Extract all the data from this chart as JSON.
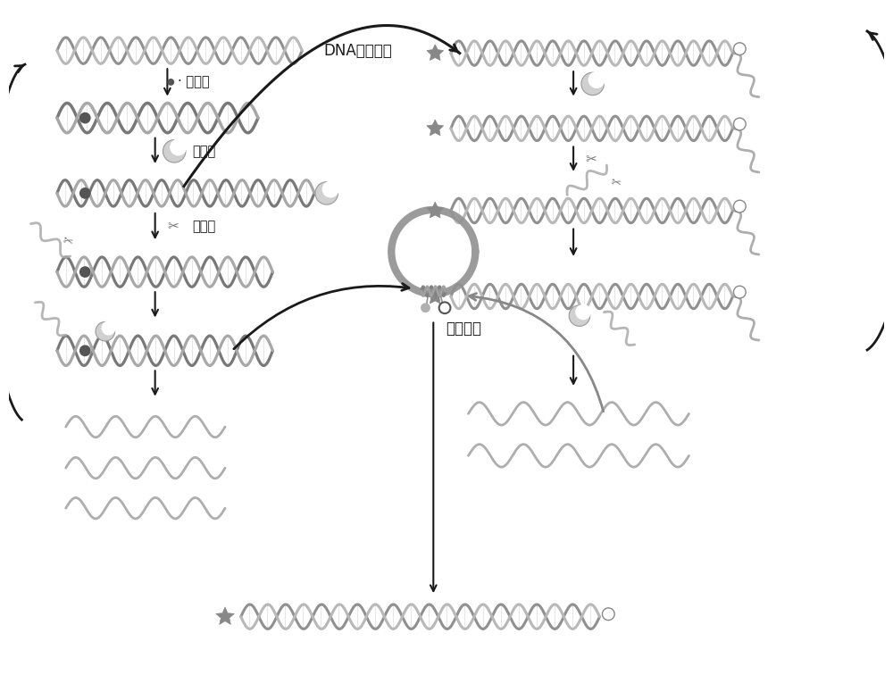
{
  "bg_color": "#ffffff",
  "text_color": "#1a1a1a",
  "label_dna": "DNA识别元件",
  "label_mercury": "· 汞离子",
  "label_polymerase": "聚合酶",
  "label_nickase": "切口酶",
  "label_beacon": "分子信标",
  "figsize": [
    10.0,
    7.65
  ],
  "dpi": 100,
  "helix_c1": "#909090",
  "helix_c2": "#b8b8b8",
  "arrow_color": "#1a1a1a"
}
